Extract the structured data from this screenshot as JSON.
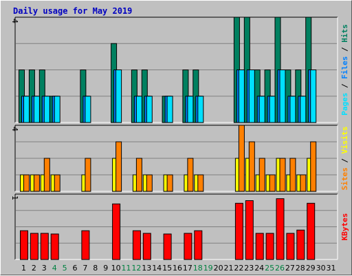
{
  "chart_data": {
    "type": "bar",
    "title": "Daily usage for May 2019",
    "colors": {
      "hits": "#008060",
      "files": "#0080ff",
      "pages": "#00e0ff",
      "visits": "#ffff00",
      "sites": "#ff8000",
      "kbytes": "#ff0000",
      "weekend_label": "#008040",
      "title": "#0000c0",
      "grid": "#808080",
      "panel": "#c0c0c0"
    },
    "categories": [
      "1",
      "2",
      "3",
      "4",
      "5",
      "6",
      "7",
      "8",
      "9",
      "10",
      "11",
      "12",
      "13",
      "14",
      "15",
      "16",
      "17",
      "18",
      "19",
      "20",
      "21",
      "22",
      "23",
      "24",
      "25",
      "26",
      "27",
      "28",
      "29",
      "30",
      "31"
    ],
    "weekend_days": [
      "4",
      "5",
      "11",
      "12",
      "18",
      "19",
      "25",
      "26"
    ],
    "panels": [
      {
        "id": "hits_files_pages",
        "ymax_label": "4",
        "ymax": 4,
        "axis_label_parts": [
          {
            "text": "Pages",
            "color": "#00e0ff"
          },
          {
            "text": " / ",
            "color": "#000000"
          },
          {
            "text": "Files",
            "color": "#0080ff"
          },
          {
            "text": " / ",
            "color": "#000000"
          },
          {
            "text": "Hits",
            "color": "#008060"
          }
        ],
        "series": [
          {
            "name": "Hits",
            "color": "#008060",
            "values": [
              2,
              2,
              2,
              1,
              0,
              0,
              2,
              0,
              0,
              3,
              0,
              2,
              2,
              0,
              1,
              0,
              2,
              2,
              0,
              0,
              0,
              4,
              4,
              2,
              2,
              4,
              2,
              2,
              4,
              0,
              0
            ]
          },
          {
            "name": "Files",
            "color": "#0080ff",
            "values": [
              1,
              1,
              1,
              1,
              0,
              0,
              1,
              0,
              0,
              2,
              0,
              1,
              1,
              0,
              1,
              0,
              1,
              1,
              0,
              0,
              0,
              2,
              2,
              1,
              1,
              2,
              1,
              1,
              2,
              0,
              0
            ]
          },
          {
            "name": "Pages",
            "color": "#00e0ff",
            "values": [
              1,
              1,
              1,
              1,
              0,
              0,
              1,
              0,
              0,
              2,
              0,
              1,
              1,
              0,
              1,
              0,
              1,
              1,
              0,
              0,
              0,
              2,
              2,
              1,
              1,
              2,
              1,
              1,
              2,
              0,
              0
            ]
          }
        ]
      },
      {
        "id": "visits_sites",
        "ymax_label": "4",
        "ymax": 4,
        "axis_label_parts": [
          {
            "text": "Sites",
            "color": "#ff8000"
          },
          {
            "text": " / ",
            "color": "#000000"
          },
          {
            "text": "Visits",
            "color": "#ffff00"
          }
        ],
        "series": [
          {
            "name": "Visits",
            "color": "#ffff00",
            "values": [
              1,
              1,
              1,
              1,
              0,
              0,
              1,
              0,
              0,
              2,
              0,
              1,
              1,
              0,
              1,
              0,
              1,
              1,
              0,
              0,
              0,
              2,
              2,
              1,
              1,
              2,
              1,
              1,
              2,
              0,
              0
            ]
          },
          {
            "name": "Sites",
            "color": "#ff8000",
            "values": [
              1,
              1,
              2,
              1,
              0,
              0,
              2,
              0,
              0,
              3,
              0,
              2,
              1,
              0,
              1,
              0,
              2,
              1,
              0,
              0,
              0,
              4,
              3,
              2,
              1,
              2,
              2,
              1,
              3,
              0,
              0
            ]
          }
        ]
      },
      {
        "id": "kbytes",
        "ymax_label": "1",
        "ymax": 1,
        "axis_label_parts": [
          {
            "text": "KBytes",
            "color": "#ff0000"
          }
        ],
        "series": [
          {
            "name": "KBytes",
            "color": "#ff0000",
            "values": [
              0.44,
              0.4,
              0.4,
              0.39,
              0,
              0,
              0.44,
              0,
              0,
              0.85,
              0,
              0.44,
              0.4,
              0,
              0.39,
              0,
              0.4,
              0.44,
              0,
              0,
              0,
              0.86,
              0.9,
              0.4,
              0.4,
              0.93,
              0.4,
              0.45,
              0.86,
              0,
              0
            ]
          }
        ]
      }
    ]
  }
}
